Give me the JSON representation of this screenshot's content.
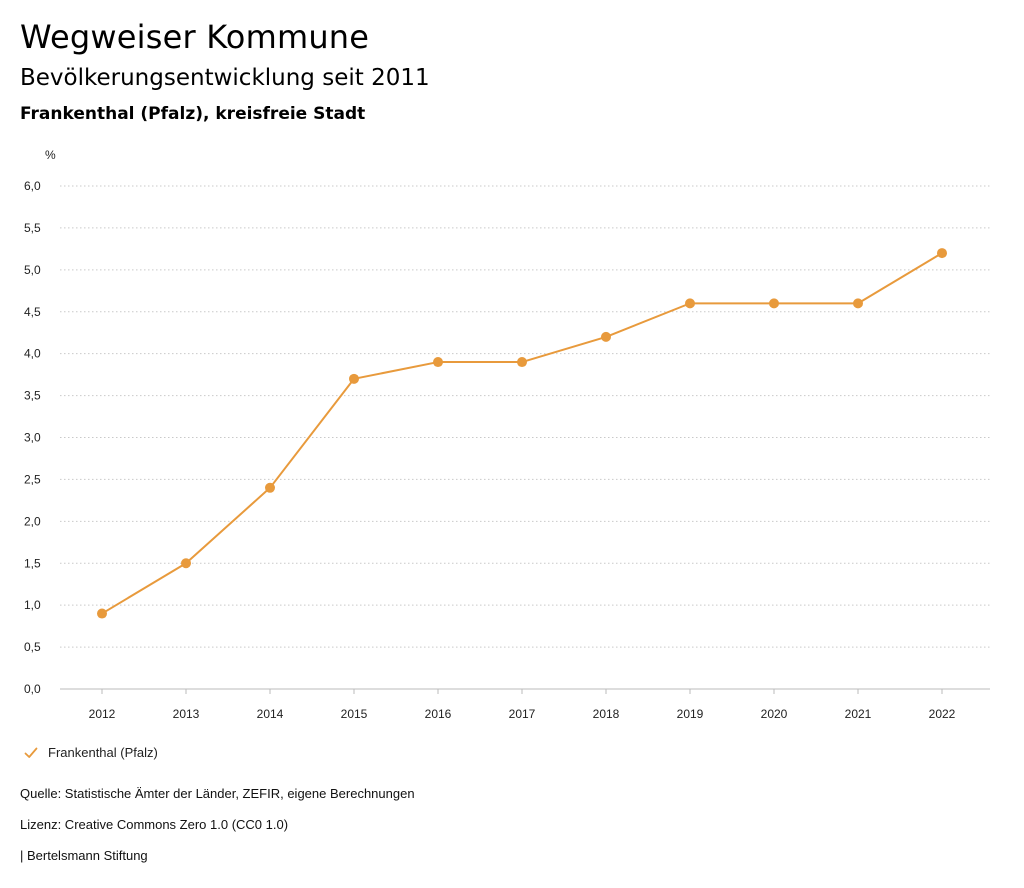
{
  "header": {
    "title": "Wegweiser Kommune",
    "subtitle": "Bevölkerungsentwicklung seit 2011",
    "region": "Frankenthal (Pfalz), kreisfreie Stadt"
  },
  "legend": {
    "label": "Frankenthal (Pfalz)",
    "icon": "check-icon"
  },
  "footer": {
    "source": "Quelle: Statistische Ämter der Länder, ZEFIR, eigene Berechnungen",
    "license": "Lizenz: Creative Commons Zero 1.0 (CC0 1.0)",
    "publisher": "| Bertelsmann Stiftung"
  },
  "colors": {
    "series": "#e89a3c",
    "grid": "#c9c9c9",
    "axis": "#bbbbbb"
  },
  "chart_data": {
    "type": "line",
    "title": "Bevölkerungsentwicklung seit 2011",
    "subtitle": "Frankenthal (Pfalz), kreisfreie Stadt",
    "xlabel": "",
    "ylabel": "%",
    "categories": [
      "2012",
      "2013",
      "2014",
      "2015",
      "2016",
      "2017",
      "2018",
      "2019",
      "2020",
      "2021",
      "2022"
    ],
    "series": [
      {
        "name": "Frankenthal (Pfalz)",
        "values": [
          0.9,
          1.5,
          2.4,
          3.7,
          3.9,
          3.9,
          4.2,
          4.6,
          4.6,
          4.6,
          5.2
        ]
      }
    ],
    "ylim": [
      0,
      6
    ],
    "yticks": [
      "0,0",
      "0,5",
      "1,0",
      "1,5",
      "2,0",
      "2,5",
      "3,0",
      "3,5",
      "4,0",
      "4,5",
      "5,0",
      "5,5",
      "6,0"
    ],
    "grid": true,
    "legend_position": "bottom-left"
  }
}
